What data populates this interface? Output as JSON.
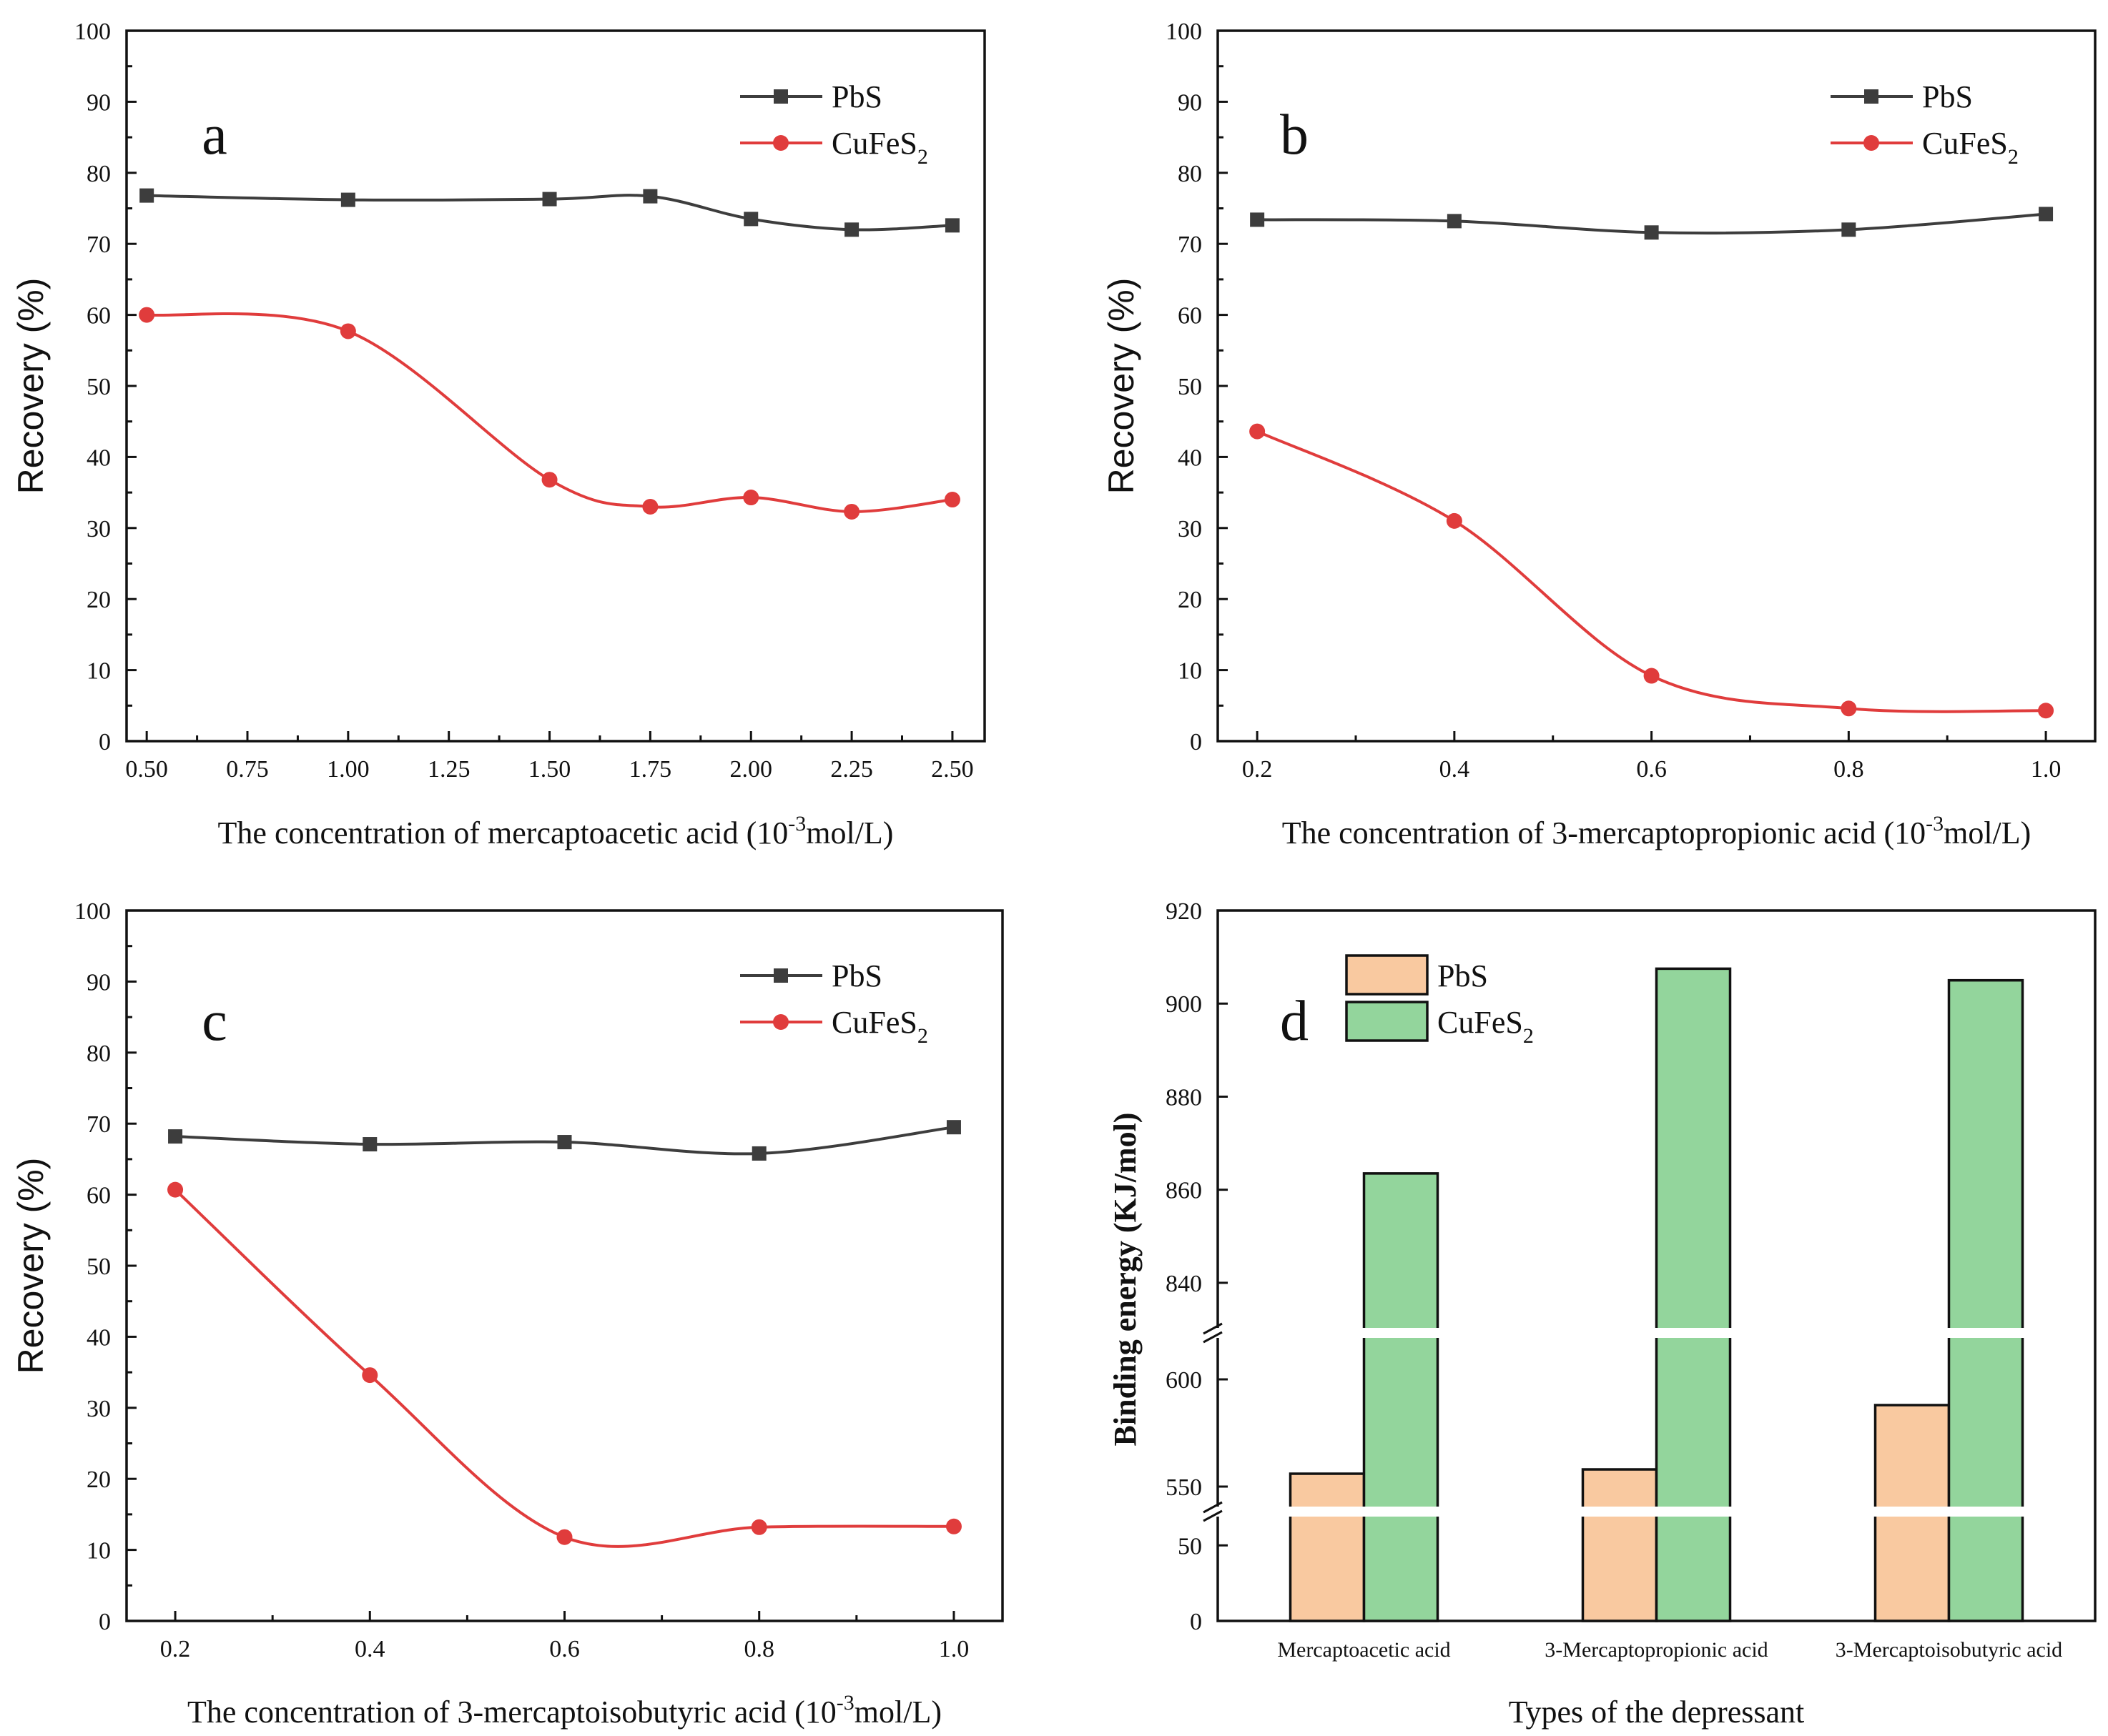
{
  "chart_data": [
    {
      "id": "a",
      "type": "line",
      "panel_label": "a",
      "xlabel_parts": [
        "The concentration of  mercaptoacetic acid (10",
        "-3",
        "mol/L)"
      ],
      "ylabel": "Recovery  (%)",
      "x": [
        0.5,
        1.0,
        1.5,
        1.75,
        2.0,
        2.25,
        2.5
      ],
      "xlim": [
        0.45,
        2.58
      ],
      "x_ticks": [
        0.5,
        0.75,
        1.0,
        1.25,
        1.5,
        1.75,
        2.0,
        2.25,
        2.5
      ],
      "x_tick_labels": [
        "0.50",
        "0.75",
        "1.00",
        "1.25",
        "1.50",
        "1.75",
        "2.00",
        "2.25",
        "2.50"
      ],
      "ylim": [
        0,
        100
      ],
      "y_ticks": [
        0,
        10,
        20,
        30,
        40,
        50,
        60,
        70,
        80,
        90,
        100
      ],
      "y_tick_labels": [
        "0",
        "10",
        "20",
        "30",
        "40",
        "50",
        "60",
        "70",
        "80",
        "90",
        "100"
      ],
      "series": [
        {
          "name": "PbS",
          "legend_main": "PbS",
          "legend_sub": "",
          "legend_tail": "",
          "color": "#3d3d3d",
          "marker": "square",
          "values": [
            76.8,
            76.2,
            76.3,
            76.7,
            73.5,
            72.0,
            72.6
          ]
        },
        {
          "name": "CuFeS2",
          "legend_main": "CuFeS",
          "legend_sub": "2",
          "legend_tail": "",
          "color": "#e03c3c",
          "marker": "circle",
          "values": [
            60.0,
            57.7,
            36.8,
            33.0,
            34.3,
            32.3,
            34.0
          ]
        }
      ]
    },
    {
      "id": "b",
      "type": "line",
      "panel_label": "b",
      "xlabel_parts": [
        "The concentration of 3-mercaptopropionic acid (10",
        "-3",
        "mol/L)"
      ],
      "ylabel": "Recovery  (%)",
      "x": [
        0.2,
        0.4,
        0.6,
        0.8,
        1.0
      ],
      "xlim": [
        0.16,
        1.05
      ],
      "x_ticks": [
        0.2,
        0.4,
        0.6,
        0.8,
        1.0
      ],
      "x_tick_labels": [
        "0.2",
        "0.4",
        "0.6",
        "0.8",
        "1.0"
      ],
      "ylim": [
        0,
        100
      ],
      "y_ticks": [
        0,
        10,
        20,
        30,
        40,
        50,
        60,
        70,
        80,
        90,
        100
      ],
      "y_tick_labels": [
        "0",
        "10",
        "20",
        "30",
        "40",
        "50",
        "60",
        "70",
        "80",
        "90",
        "100"
      ],
      "series": [
        {
          "name": "PbS",
          "legend_main": "PbS",
          "legend_sub": "",
          "legend_tail": "",
          "color": "#3d3d3d",
          "marker": "square",
          "values": [
            73.4,
            73.2,
            71.6,
            72.0,
            74.2
          ]
        },
        {
          "name": "CuFeS2",
          "legend_main": "CuFeS",
          "legend_sub": "2",
          "legend_tail": "",
          "color": "#e03c3c",
          "marker": "circle",
          "values": [
            43.6,
            31.0,
            9.2,
            4.6,
            4.3
          ]
        }
      ]
    },
    {
      "id": "c",
      "type": "line",
      "panel_label": "c",
      "xlabel_parts": [
        "The concentration of 3-mercaptoisobutyric acid (10",
        "-3",
        "mol/L)"
      ],
      "ylabel": "Recovery  (%)",
      "x": [
        0.2,
        0.4,
        0.6,
        0.8,
        1.0
      ],
      "xlim": [
        0.15,
        1.05
      ],
      "x_ticks": [
        0.2,
        0.4,
        0.6,
        0.8,
        1.0
      ],
      "x_tick_labels": [
        "0.2",
        "0.4",
        "0.6",
        "0.8",
        "1.0"
      ],
      "ylim": [
        0,
        100
      ],
      "y_ticks": [
        0,
        10,
        20,
        30,
        40,
        50,
        60,
        70,
        80,
        90,
        100
      ],
      "y_tick_labels": [
        "0",
        "10",
        "20",
        "30",
        "40",
        "50",
        "60",
        "70",
        "80",
        "90",
        "100"
      ],
      "series": [
        {
          "name": "PbS",
          "legend_main": "PbS",
          "legend_sub": "",
          "legend_tail": "",
          "color": "#3d3d3d",
          "marker": "square",
          "values": [
            68.2,
            67.1,
            67.4,
            65.8,
            69.5
          ]
        },
        {
          "name": "CuFeS2",
          "legend_main": "CuFeS",
          "legend_sub": "2",
          "legend_tail": "",
          "color": "#e03c3c",
          "marker": "circle",
          "values": [
            60.7,
            34.6,
            11.8,
            13.2,
            13.3
          ]
        }
      ]
    },
    {
      "id": "d",
      "type": "bar",
      "panel_label": "d",
      "xlabel": "Types of the depressant",
      "ylabel": "Binding energy (KJ/mol)",
      "categories": [
        "Mercaptoacetic acid",
        "3-Mercaptopropionic acid",
        "3-Mercaptoisobutyric acid"
      ],
      "y_axis_break": true,
      "y_segments": [
        {
          "range": [
            0,
            70
          ],
          "ticks": [
            0,
            50
          ],
          "tick_labels": [
            "0",
            "50"
          ]
        },
        {
          "range": [
            540,
            620
          ],
          "ticks": [
            550,
            600
          ],
          "tick_labels": [
            "550",
            "600"
          ]
        },
        {
          "range": [
            830,
            920
          ],
          "ticks": [
            840,
            860,
            880,
            900,
            920
          ],
          "tick_labels": [
            "840",
            "860",
            "880",
            "900",
            "920"
          ]
        }
      ],
      "series": [
        {
          "name": "PbS",
          "legend_main": "PbS",
          "legend_sub": "",
          "legend_tail": "",
          "color": "#f9c9a0",
          "values": [
            556,
            558,
            588
          ]
        },
        {
          "name": "CuFeS2",
          "legend_main": "CuFeS",
          "legend_sub": "2",
          "legend_tail": "",
          "color": "#93d59c",
          "values": [
            863.5,
            907.5,
            905
          ]
        }
      ]
    }
  ]
}
